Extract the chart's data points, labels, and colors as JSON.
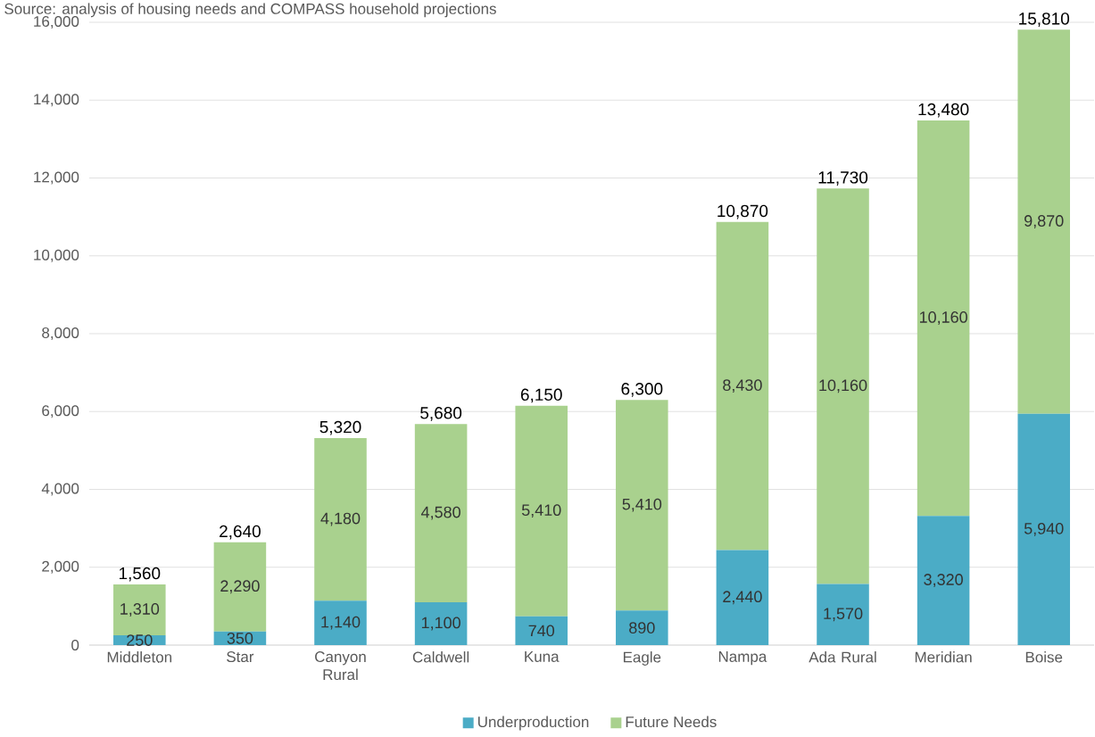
{
  "chart_data": {
    "type": "bar",
    "stacked": true,
    "annotations": [
      "Source: analysis of housing needs and COMPASS household projections"
    ],
    "categories": [
      "Middleton",
      "Star",
      "Canyon Rural",
      "Caldwell",
      "Kuna",
      "Eagle",
      "Nampa",
      "Ada Rural",
      "Meridian",
      "Boise"
    ],
    "series": [
      {
        "name": "Underproduction",
        "color": "#4bacc6",
        "values": [
          250,
          350,
          1140,
          1100,
          740,
          890,
          2440,
          1570,
          3320,
          5940
        ],
        "value_labels": [
          "250",
          "350",
          "1,140",
          "1,100",
          "740",
          "890",
          "2,440",
          "1,570",
          "3,320",
          "5,940"
        ]
      },
      {
        "name": "Future Needs",
        "color": "#a9d18e",
        "values": [
          1310,
          2290,
          4180,
          4580,
          5410,
          5410,
          8430,
          10160,
          10160,
          9870
        ],
        "value_labels": [
          "1,310",
          "2,290",
          "4,180",
          "4,580",
          "5,410",
          "5,410",
          "8,430",
          "10,160",
          "10,160",
          "9,870"
        ]
      }
    ],
    "totals": [
      "1,560",
      "2,640",
      "5,320",
      "5,680",
      "6,150",
      "6,300",
      "10,870",
      "11,730",
      "13,480",
      "15,810"
    ],
    "ylim": [
      0,
      16000
    ],
    "yticks": [
      {
        "value": 0,
        "label": "0"
      },
      {
        "value": 2000,
        "label": "2,000"
      },
      {
        "value": 4000,
        "label": "4,000"
      },
      {
        "value": 6000,
        "label": "6,000"
      },
      {
        "value": 8000,
        "label": "8,000"
      },
      {
        "value": 10000,
        "label": "10,000"
      },
      {
        "value": 12000,
        "label": "12,000"
      },
      {
        "value": 14000,
        "label": "14,000"
      },
      {
        "value": 16000,
        "label": "16,000"
      }
    ],
    "grid": "y",
    "legend": "bottom"
  }
}
